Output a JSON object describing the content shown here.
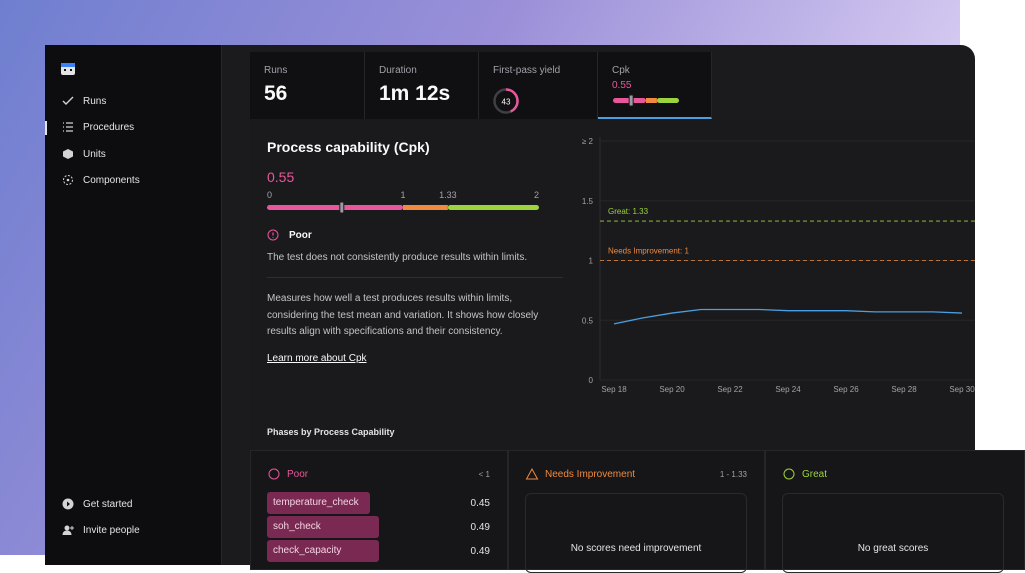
{
  "sidebar": {
    "nav": [
      "Runs",
      "Procedures",
      "Units",
      "Components"
    ],
    "footer": [
      "Get started",
      "Invite people"
    ]
  },
  "metrics": {
    "runs": {
      "label": "Runs",
      "value": 56
    },
    "duration": {
      "label": "Duration",
      "value": "1m 12s"
    },
    "yield": {
      "label": "First-pass yield",
      "value": 43
    },
    "cpk": {
      "label": "Cpk",
      "value": 0.55
    }
  },
  "capability": {
    "title": "Process capability (Cpk)",
    "value": 0.55,
    "scale": [
      0,
      1,
      1.33,
      2
    ],
    "status": "Poor",
    "summary": "The test does not consistently produce results within limits.",
    "description": "Measures how well a test produces results within limits, considering the test mean and variation. It shows how closely results align with specifications and their consistency.",
    "link": "Learn more about Cpk"
  },
  "chart_data": {
    "type": "line",
    "categories": [
      "Sep 18",
      null,
      "Sep 20",
      null,
      "Sep 22",
      null,
      "Sep 24",
      null,
      "Sep 26",
      null,
      "Sep 28",
      null,
      "Sep 30"
    ],
    "series": [
      {
        "name": "Cpk",
        "color": "#4a9fe0",
        "values": [
          0.47,
          0.52,
          0.56,
          0.59,
          0.59,
          0.59,
          0.58,
          0.58,
          0.58,
          0.57,
          0.57,
          0.57,
          0.56
        ]
      }
    ],
    "ylim": [
      0,
      2
    ],
    "yticks": [
      0,
      0.5,
      1,
      1.5,
      {
        "value": 2,
        "label": "≥ 2"
      }
    ],
    "reference_lines": [
      {
        "label": "Great: 1.33",
        "value": 1.33,
        "color": "#9bd43c"
      },
      {
        "label": "Needs Improvement: 1",
        "value": 1,
        "color": "#f08a3e"
      }
    ],
    "grid": true
  },
  "phases": {
    "title": "Phases by Process Capability",
    "columns": [
      {
        "name": "Poor",
        "range": "< 1",
        "items": [
          {
            "name": "temperature_check",
            "value": 0.45
          },
          {
            "name": "soh_check",
            "value": 0.49
          },
          {
            "name": "check_capacity",
            "value": 0.49
          }
        ]
      },
      {
        "name": "Needs Improvement",
        "range": "1 - 1.33",
        "empty": "No scores need improvement"
      },
      {
        "name": "Great",
        "empty": "No great scores"
      }
    ]
  }
}
